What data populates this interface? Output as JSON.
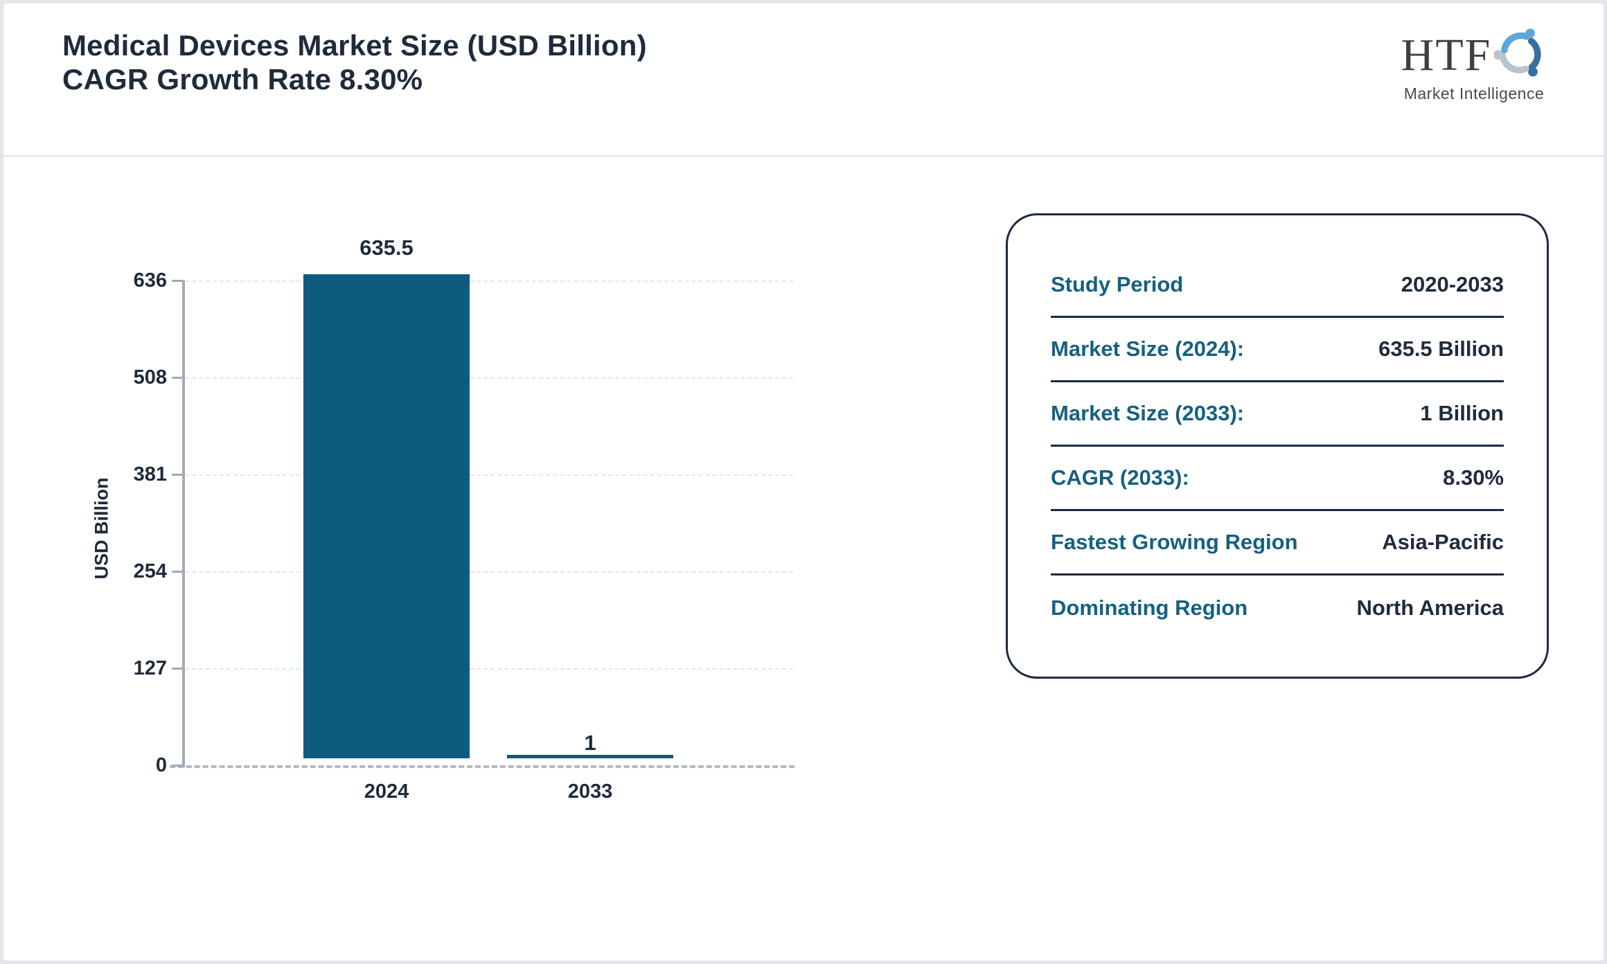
{
  "header": {
    "title_line1": "Medical Devices Market Size (USD Billion)",
    "title_line2": "CAGR Growth Rate 8.30%"
  },
  "logo": {
    "text": "HTF",
    "subtext": "Market Intelligence"
  },
  "chart_data": {
    "type": "bar",
    "title": "Medical Devices Market Size (USD Billion) CAGR Growth Rate 8.30%",
    "categories": [
      "2024",
      "2033"
    ],
    "values": [
      635.5,
      1
    ],
    "xlabel": "",
    "ylabel": "USD Billion",
    "ylim": [
      0,
      636
    ],
    "yticks": [
      636,
      508,
      381,
      254,
      127,
      0
    ],
    "grid": "horizontal dashed gridlines, dashed zero baseline",
    "legend": "none",
    "bar_color": "#0d5c80"
  },
  "panel": {
    "rows": [
      {
        "label": "Study Period",
        "value": "2020-2033"
      },
      {
        "label": "Market Size (2024):",
        "value": "635.5 Billion"
      },
      {
        "label": "Market Size (2033):",
        "value": "1 Billion"
      },
      {
        "label": "CAGR (2033):",
        "value": "8.30%"
      },
      {
        "label": "Fastest Growing Region",
        "value": "Asia-Pacific"
      },
      {
        "label": "Dominating Region",
        "value": "North America"
      }
    ]
  },
  "colors": {
    "accent_teal": "#15607f",
    "dark_navy": "#202b3c",
    "bar": "#0d5c80",
    "frame_gray": "#e4e6ea",
    "axis_gray": "#a3aab4",
    "logo_lightblue": "#5aa9d8",
    "logo_darkblue": "#38709c",
    "logo_gray": "#b9c3cb"
  }
}
